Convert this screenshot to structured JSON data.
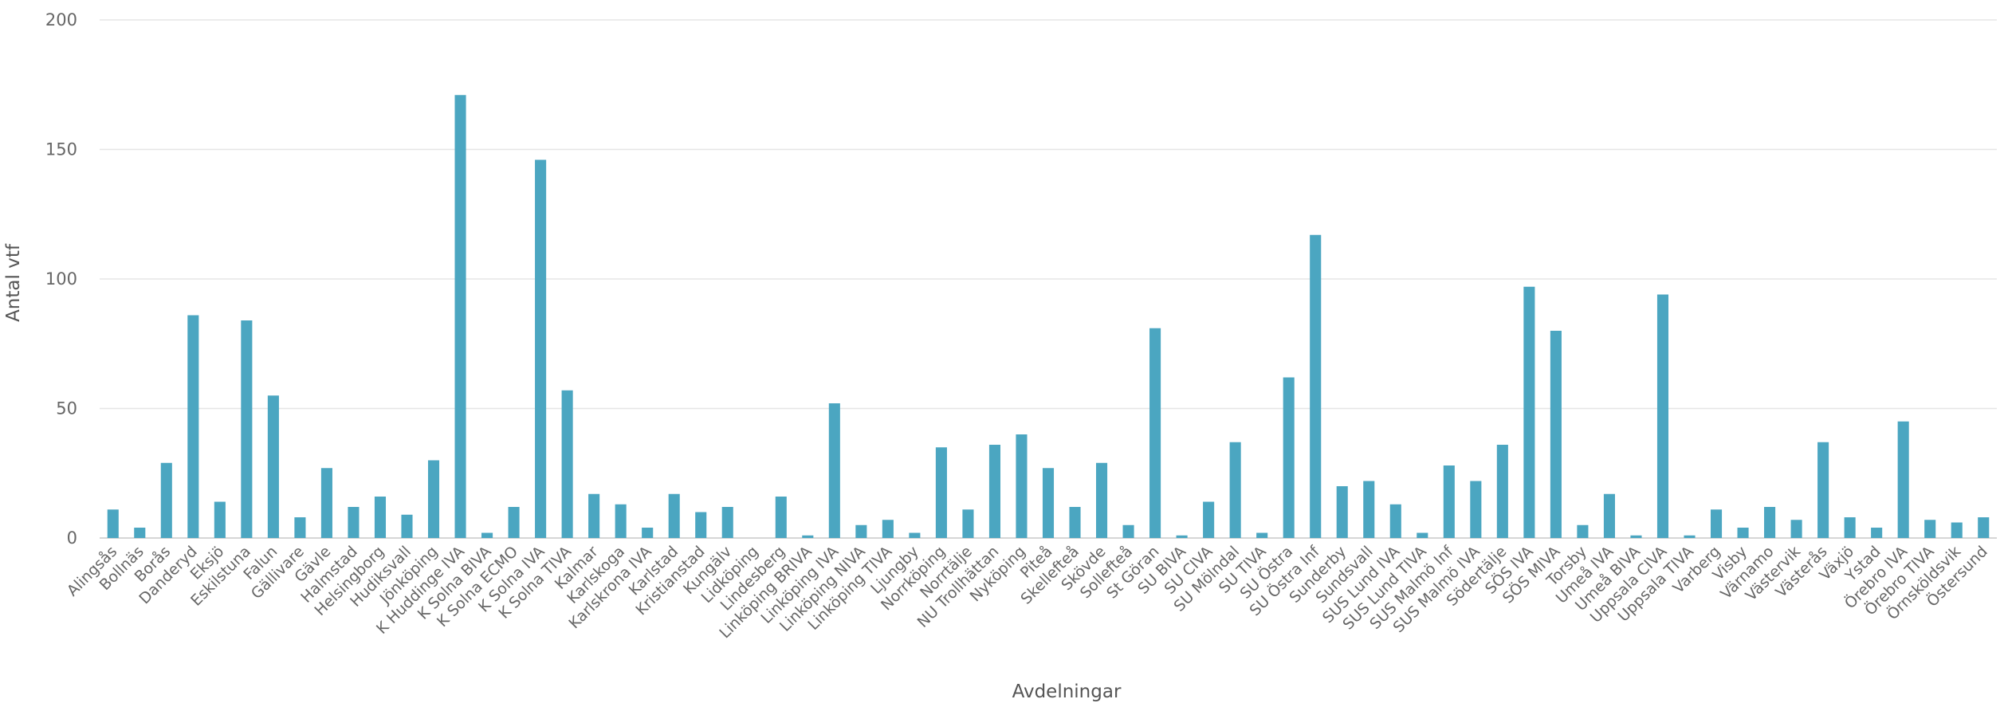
{
  "chart_data": {
    "type": "bar",
    "xlabel": "Avdelningar",
    "ylabel": "Antal vtf",
    "ylim": [
      0,
      200
    ],
    "yticks": [
      0,
      50,
      100,
      150,
      200
    ],
    "grid": true,
    "bar_color": "#4ba6c1",
    "categories": [
      "Alingsås",
      "Bollnäs",
      "Borås",
      "Danderyd",
      "Eksjö",
      "Eskilstuna",
      "Falun",
      "Gällivare",
      "Gävle",
      "Halmstad",
      "Helsingborg",
      "Hudiksvall",
      "Jönköping",
      "K Huddinge IVA",
      "K Solna BIVA",
      "K Solna ECMO",
      "K Solna IVA",
      "K Solna TIVA",
      "Kalmar",
      "Karlskoga",
      "Karlskrona IVA",
      "Karlstad",
      "Kristianstad",
      "Kungälv",
      "Lidköping",
      "Lindesberg",
      "Linköping BRIVA",
      "Linköping IVA",
      "Linköping NIVA",
      "Linköping TIVA",
      "Ljungby",
      "Norrköping",
      "Norrtälje",
      "NU Trollhättan",
      "Nyköping",
      "Piteå",
      "Skellefteå",
      "Skövde",
      "Sollefteå",
      "St Göran",
      "SU BIVA",
      "SU CIVA",
      "SU Mölndal",
      "SU TIVA",
      "SU Östra",
      "SU Östra Inf",
      "Sunderby",
      "Sundsvall",
      "SUS Lund IVA",
      "SUS Lund TIVA",
      "SUS Malmö Inf",
      "SUS Malmö IVA",
      "Södertälje",
      "SÖS IVA",
      "SÖS MIVA",
      "Torsby",
      "Umeå IVA",
      "Umeå BIVA",
      "Uppsala CIVA",
      "Uppsala TIVA",
      "Varberg",
      "Visby",
      "Värnamo",
      "Västervik",
      "Västerås",
      "Växjö",
      "Ystad",
      "Örebro IVA",
      "Örebro TIVA",
      "Örnsköldsvik",
      "Östersund"
    ],
    "values": [
      11,
      4,
      29,
      86,
      14,
      84,
      55,
      8,
      27,
      12,
      16,
      9,
      30,
      171,
      2,
      12,
      146,
      57,
      17,
      13,
      4,
      17,
      10,
      12,
      0,
      16,
      1,
      52,
      5,
      7,
      2,
      35,
      11,
      36,
      40,
      27,
      12,
      29,
      5,
      81,
      1,
      14,
      37,
      2,
      62,
      117,
      20,
      22,
      13,
      2,
      28,
      22,
      36,
      97,
      80,
      5,
      17,
      1,
      94,
      1,
      11,
      4,
      12,
      7,
      37,
      8,
      4,
      45,
      7,
      6,
      8
    ]
  }
}
